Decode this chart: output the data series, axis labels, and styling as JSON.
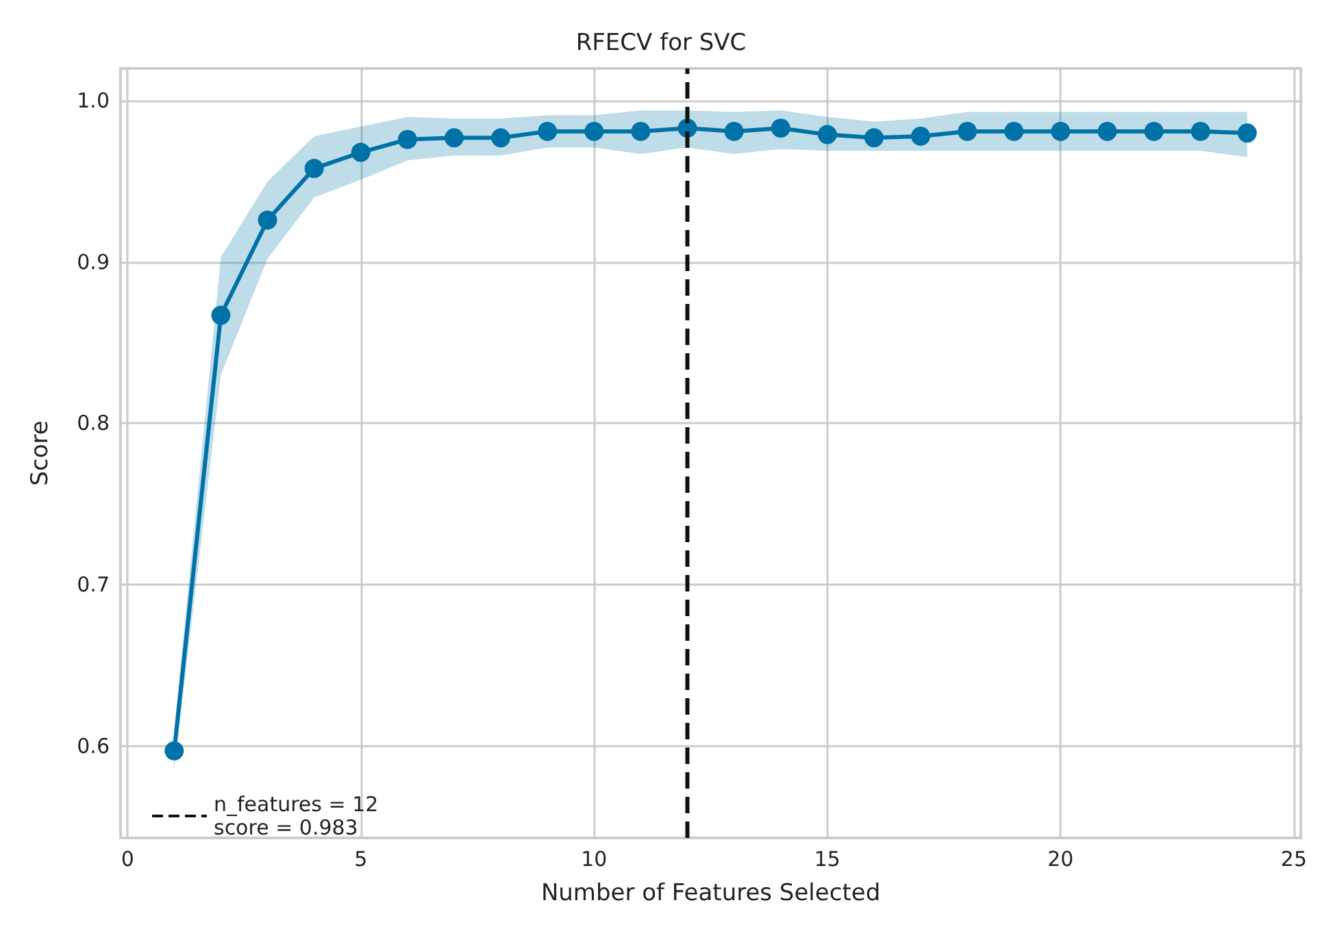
{
  "chart_data": {
    "type": "line",
    "title": "RFECV for SVC",
    "xlabel": "Number of Features Selected",
    "ylabel": "Score",
    "x": [
      1,
      2,
      3,
      4,
      5,
      6,
      7,
      8,
      9,
      10,
      11,
      12,
      13,
      14,
      15,
      16,
      17,
      18,
      19,
      20,
      21,
      22,
      23,
      24
    ],
    "series": [
      {
        "color": "#0072a7",
        "values": [
          0.597,
          0.867,
          0.926,
          0.958,
          0.968,
          0.976,
          0.977,
          0.977,
          0.981,
          0.981,
          0.981,
          0.983,
          0.981,
          0.983,
          0.979,
          0.977,
          0.978,
          0.981,
          0.981,
          0.981,
          0.981,
          0.981,
          0.981,
          0.98
        ],
        "lower": [
          0.585,
          0.83,
          0.902,
          0.94,
          0.951,
          0.963,
          0.966,
          0.966,
          0.971,
          0.971,
          0.967,
          0.971,
          0.967,
          0.97,
          0.969,
          0.969,
          0.969,
          0.969,
          0.969,
          0.969,
          0.969,
          0.969,
          0.969,
          0.965
        ],
        "upper": [
          0.61,
          0.903,
          0.95,
          0.978,
          0.984,
          0.99,
          0.989,
          0.989,
          0.991,
          0.991,
          0.994,
          0.994,
          0.993,
          0.994,
          0.99,
          0.987,
          0.989,
          0.993,
          0.993,
          0.993,
          0.993,
          0.993,
          0.993,
          0.993
        ]
      }
    ],
    "xlim": [
      -0.15,
      25.15
    ],
    "xticks": [
      0,
      5,
      10,
      15,
      20,
      25
    ],
    "ylim": [
      0.543,
      1.02
    ],
    "yticks": [
      {
        "value": 0.6,
        "label": "0.6"
      },
      {
        "value": 0.7,
        "label": "0.7"
      },
      {
        "value": 0.8,
        "label": "0.8"
      },
      {
        "value": 0.9,
        "label": "0.9"
      },
      {
        "value": 1.0,
        "label": "1.0"
      }
    ],
    "ref_lines": [
      {
        "axis": "x",
        "value": 12,
        "label": "n_features = 12\nscore = 0.983",
        "color": "#111111",
        "line_style": "dashed"
      }
    ],
    "grid": true,
    "legend": "bottom left",
    "marker": "circle",
    "line_style": "solid"
  }
}
